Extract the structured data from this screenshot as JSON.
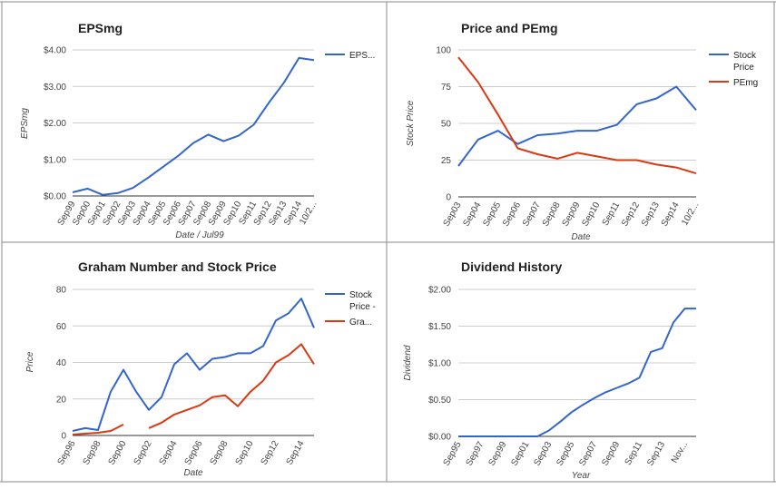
{
  "colors": {
    "blue": "#3366cc",
    "red": "#dc3912",
    "grid": "#cccccc",
    "axis": "#333333",
    "text": "#222222",
    "label": "#444444",
    "border": "#8a8a8a"
  },
  "chart_data": [
    {
      "type": "line",
      "title": "EPSmg",
      "xlabel": "Date / Jul99",
      "ylabel": "EPSmg",
      "ylim": [
        0,
        4
      ],
      "yticks": [
        "$0.00",
        "$1.00",
        "$2.00",
        "$3.00",
        "$4.00"
      ],
      "ytick_values": [
        0,
        1,
        2,
        3,
        4
      ],
      "categories": [
        "Sep99",
        "Sep00",
        "Sep01",
        "Sep02",
        "Sep03",
        "Sep04",
        "Sep05",
        "Sep06",
        "Sep07",
        "Sep08",
        "Sep09",
        "Sep10",
        "Sep11",
        "Sep12",
        "Sep13",
        "Sep14",
        "10/2..."
      ],
      "series": [
        {
          "name": "EPS...",
          "color": "#3366cc",
          "x": [
            0,
            1,
            2,
            3,
            4,
            5,
            6,
            7,
            8,
            9,
            10,
            11,
            12,
            13,
            14,
            15,
            16
          ],
          "values": [
            0.1,
            0.2,
            0.03,
            0.08,
            0.22,
            0.5,
            0.8,
            1.1,
            1.45,
            1.68,
            1.5,
            1.65,
            1.95,
            2.55,
            3.1,
            3.78,
            3.72
          ]
        }
      ],
      "legend": "right"
    },
    {
      "type": "line",
      "title": "Price and PEmg",
      "xlabel": "Date",
      "ylabel": "Stock Price",
      "ylim": [
        0,
        100
      ],
      "yticks": [
        "0",
        "25",
        "50",
        "75",
        "100"
      ],
      "ytick_values": [
        0,
        25,
        50,
        75,
        100
      ],
      "categories": [
        "Sep03",
        "Sep04",
        "Sep05",
        "Sep06",
        "Sep07",
        "Sep08",
        "Sep09",
        "Sep10",
        "Sep11",
        "Sep12",
        "Sep13",
        "Sep14",
        "10/2..."
      ],
      "series": [
        {
          "name": "Stock Price",
          "color": "#3366cc",
          "x": [
            0,
            1,
            2,
            3,
            4,
            5,
            6,
            7,
            8,
            9,
            10,
            11,
            12
          ],
          "values": [
            21,
            39,
            45,
            36,
            42,
            43,
            45,
            45,
            49,
            63,
            67,
            75,
            59
          ]
        },
        {
          "name": "PEmg",
          "color": "#dc3912",
          "x": [
            0,
            1,
            2,
            3,
            4,
            5,
            6,
            7,
            8,
            9,
            10,
            11,
            12
          ],
          "values": [
            95,
            78,
            56,
            33,
            29,
            26,
            30,
            27.5,
            25,
            25,
            22,
            20,
            16
          ]
        }
      ],
      "legend": "right"
    },
    {
      "type": "line",
      "title": "Graham Number and Stock Price",
      "xlabel": "Date",
      "ylabel": "Price",
      "ylim": [
        0,
        80
      ],
      "yticks": [
        "0",
        "20",
        "40",
        "60",
        "80"
      ],
      "ytick_values": [
        0,
        20,
        40,
        60,
        80
      ],
      "categories": [
        "Sep96",
        "Sep98",
        "Sep00",
        "Sep02",
        "Sep04",
        "Sep06",
        "Sep08",
        "Sep10",
        "Sep12",
        "Sep14"
      ],
      "category_x": [
        0,
        2,
        4,
        6,
        8,
        10,
        12,
        14,
        16,
        18
      ],
      "series": [
        {
          "name": "Stock Price -",
          "color": "#3366cc",
          "x": [
            0,
            1,
            2,
            3,
            4,
            5,
            6,
            7,
            8,
            9,
            10,
            11,
            12,
            13,
            14,
            15,
            16,
            17,
            18,
            19
          ],
          "values": [
            2.5,
            4,
            3,
            24,
            36,
            24,
            14,
            21,
            39,
            45,
            36,
            42,
            43,
            45,
            45,
            49,
            63,
            67,
            75,
            59
          ]
        },
        {
          "name": "Gra...",
          "color": "#dc3912",
          "x": [
            0,
            1,
            2,
            3,
            4,
            5,
            6,
            7,
            8,
            9,
            10,
            11,
            12,
            13,
            14,
            15,
            16,
            17,
            18,
            19
          ],
          "values": [
            0.5,
            1,
            1.5,
            2.5,
            6,
            null,
            4,
            7,
            11.5,
            14,
            16.5,
            21,
            22,
            16,
            24,
            30,
            40,
            44,
            50,
            39
          ]
        }
      ],
      "legend": "right"
    },
    {
      "type": "line",
      "title": "Dividend History",
      "xlabel": "Year",
      "ylabel": "Dividend",
      "ylim": [
        0,
        2
      ],
      "yticks": [
        "$0.00",
        "$0.50",
        "$1.00",
        "$1.50",
        "$2.00"
      ],
      "ytick_values": [
        0,
        0.5,
        1,
        1.5,
        2
      ],
      "categories": [
        "Sep95",
        "Sep97",
        "Sep99",
        "Sep01",
        "Sep03",
        "Sep05",
        "Sep07",
        "Sep09",
        "Sep11",
        "Sep13",
        "Nov..."
      ],
      "category_x": [
        0,
        2,
        4,
        6,
        8,
        10,
        12,
        14,
        16,
        18,
        20
      ],
      "series": [
        {
          "name": "",
          "color": "#3366cc",
          "x": [
            0,
            1,
            2,
            3,
            4,
            5,
            6,
            7,
            8,
            9,
            10,
            11,
            12,
            13,
            14,
            15,
            16,
            17,
            18,
            19,
            20,
            21
          ],
          "values": [
            0,
            0,
            0,
            0,
            0,
            0,
            0,
            0,
            0.08,
            0.2,
            0.33,
            0.43,
            0.52,
            0.6,
            0.66,
            0.72,
            0.8,
            1.15,
            1.2,
            1.55,
            1.74,
            1.74
          ]
        }
      ],
      "legend": "none"
    }
  ]
}
